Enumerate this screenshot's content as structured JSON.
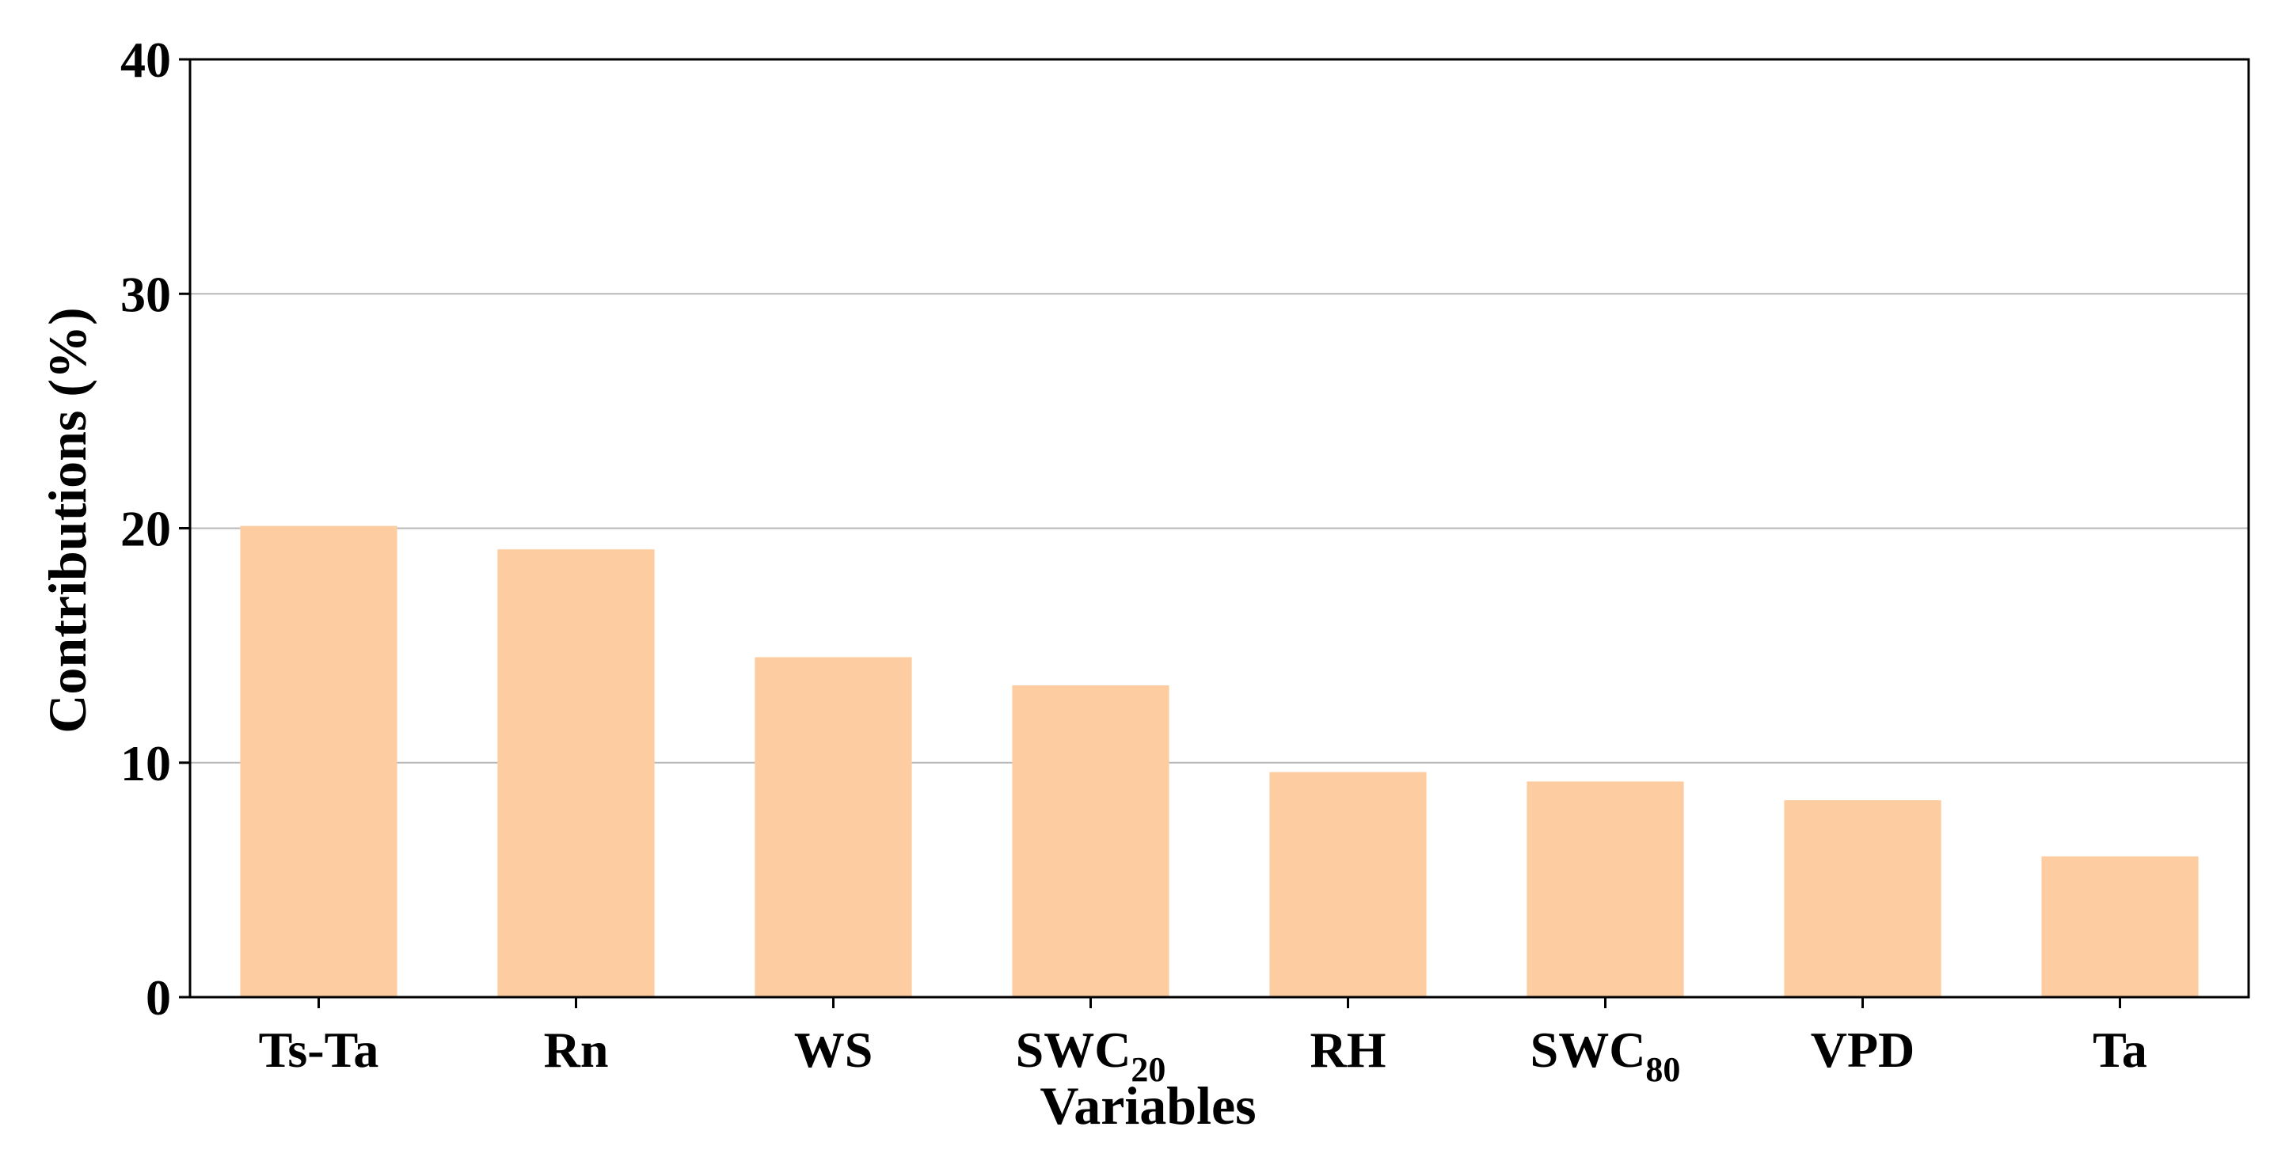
{
  "chart_data": {
    "type": "bar",
    "categories": [
      "Ts-Ta",
      "Rn",
      "WS",
      "SWC20",
      "RH",
      "SWC80",
      "VPD",
      "Ta"
    ],
    "category_labels": [
      {
        "base": "Ts-Ta",
        "sub": ""
      },
      {
        "base": "Rn",
        "sub": ""
      },
      {
        "base": "WS",
        "sub": ""
      },
      {
        "base": "SWC",
        "sub": "20"
      },
      {
        "base": "RH",
        "sub": ""
      },
      {
        "base": "SWC",
        "sub": "80"
      },
      {
        "base": "VPD",
        "sub": ""
      },
      {
        "base": "Ta",
        "sub": ""
      }
    ],
    "values": [
      20.1,
      19.1,
      14.5,
      13.3,
      9.6,
      9.2,
      8.4,
      6.0
    ],
    "xlabel": "Variables",
    "ylabel": "Contributions (%)",
    "ylim": [
      0,
      40
    ],
    "yticks": [
      0,
      10,
      20,
      30,
      40
    ],
    "grid": "horizontal",
    "legend": "none",
    "colors": {
      "bar": "#fdcda1",
      "grid": "#b8b8b8",
      "axis": "#000000"
    }
  }
}
